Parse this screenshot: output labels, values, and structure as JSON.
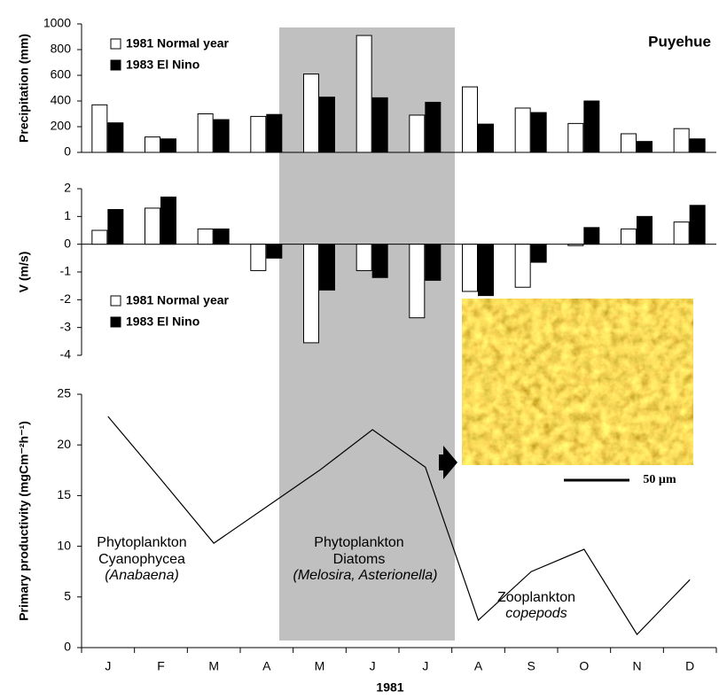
{
  "chart_data": [
    {
      "type": "bar",
      "title": "Puyehue",
      "y_label": "Precipitation (mm)",
      "ylim": [
        0,
        1000
      ],
      "yticks": [
        0,
        200,
        400,
        600,
        800,
        1000
      ],
      "series": [
        {
          "name": "1981 Normal year",
          "color": "#ffffff",
          "legend_text_color": "#1a1aff",
          "values": [
            370,
            120,
            300,
            280,
            610,
            910,
            290,
            510,
            345,
            225,
            145,
            185
          ]
        },
        {
          "name": "1983  El Nino",
          "color": "#000000",
          "legend_text_color": "#000000",
          "values": [
            230,
            105,
            255,
            295,
            430,
            425,
            390,
            220,
            310,
            400,
            85,
            105
          ]
        }
      ]
    },
    {
      "type": "bar",
      "y_label": "V (m/s)",
      "ylim": [
        -4,
        2
      ],
      "yticks": [
        -4,
        -3,
        -2,
        -1,
        0,
        1,
        2
      ],
      "series": [
        {
          "name": "1981 Normal year",
          "color": "#ffffff",
          "legend_text_color": "#1a1aff",
          "values": [
            0.5,
            1.3,
            0.55,
            -0.95,
            -3.55,
            -0.95,
            -2.65,
            -1.7,
            -1.55,
            -0.05,
            0.55,
            0.8
          ]
        },
        {
          "name": "1983  El Nino",
          "color": "#000000",
          "legend_text_color": "#000000",
          "values": [
            1.25,
            1.7,
            0.55,
            -0.5,
            -1.65,
            -1.2,
            -1.3,
            -1.85,
            -0.65,
            0.6,
            1.0,
            1.4
          ]
        }
      ]
    },
    {
      "type": "line",
      "y_label": "Primary productivity  (mgCm⁻²h⁻¹)",
      "x_label": "1981",
      "categories": [
        "J",
        "F",
        "M",
        "A",
        "M",
        "J",
        "J",
        "A",
        "S",
        "O",
        "N",
        "D"
      ],
      "values": [
        22.8,
        16.6,
        10.3,
        13.9,
        17.5,
        21.5,
        17.8,
        2.7,
        7.5,
        9.7,
        1.3,
        6.7
      ],
      "color": "#000000",
      "ylim": [
        0,
        25
      ],
      "yticks": [
        0,
        5,
        10,
        15,
        20,
        25
      ],
      "annotations": [
        "Phytoplankton",
        "Cyanophycea",
        "(Anabaena)",
        "Phytoplankton",
        "Diatoms",
        "(Melosira, Asterionella)",
        "Zooplankton",
        "copepods",
        "50 µm"
      ]
    }
  ]
}
